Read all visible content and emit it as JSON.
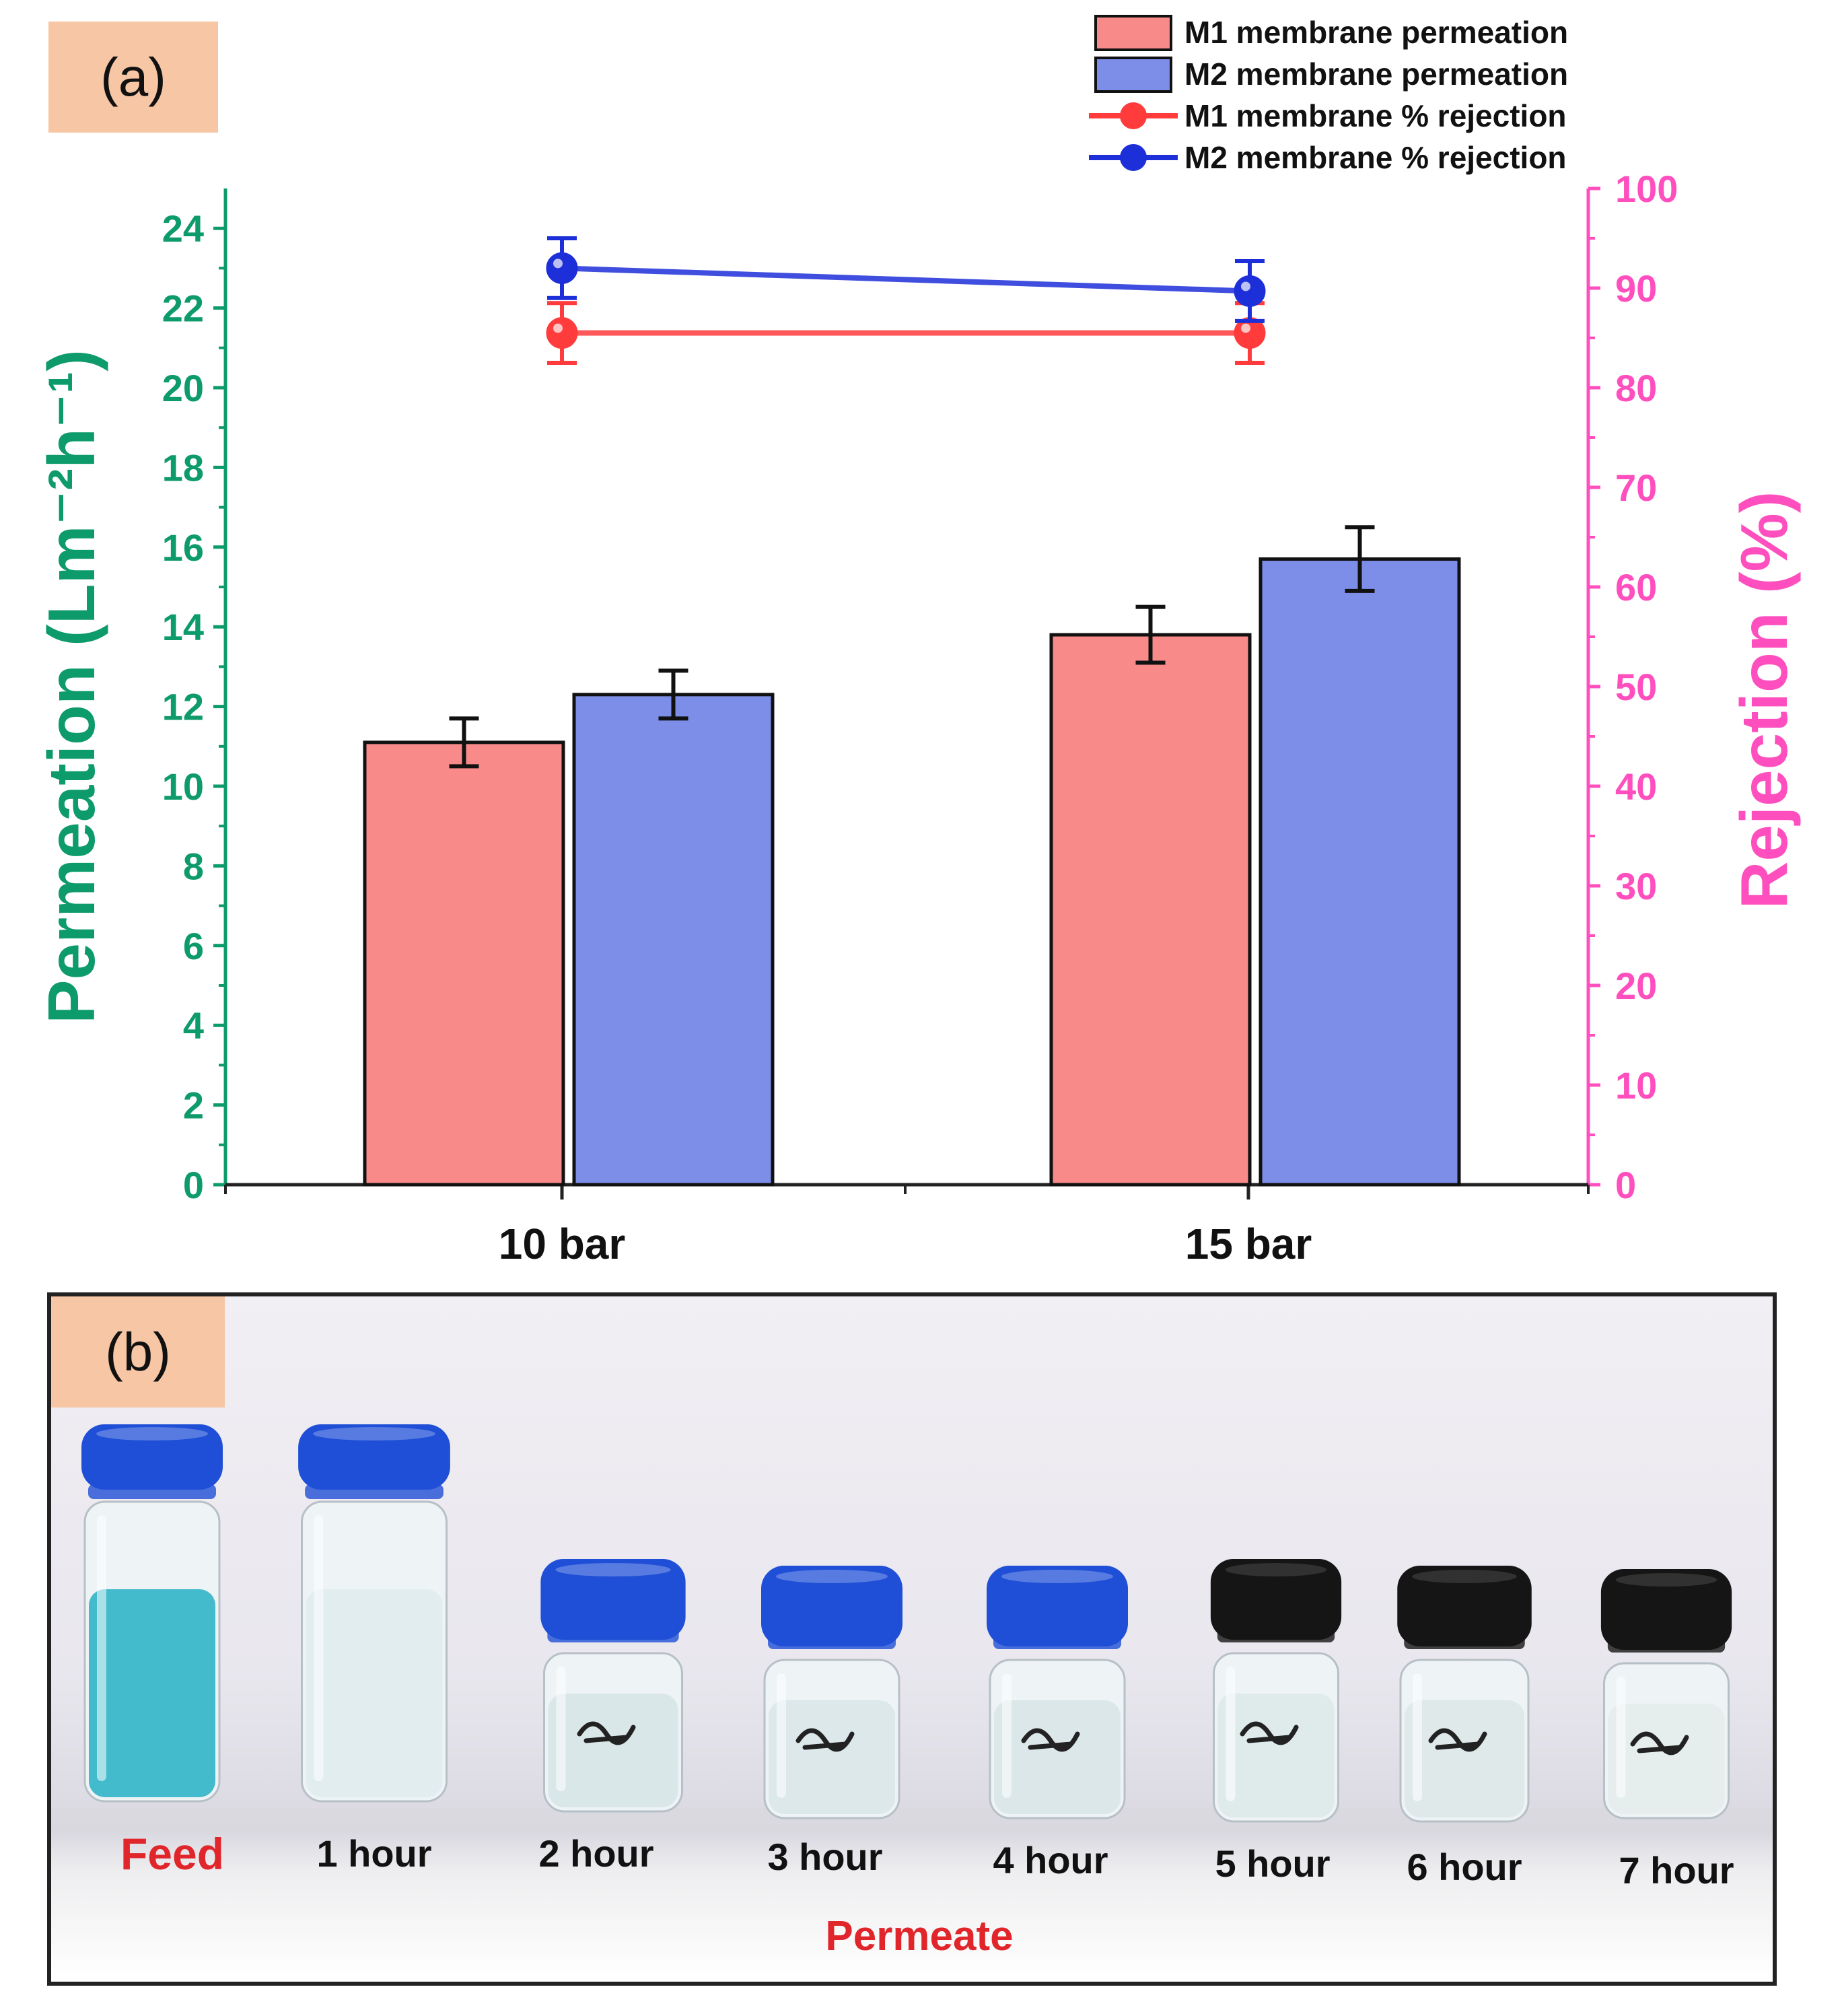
{
  "panel_a_label": "(a)",
  "panel_b_label": "(b)",
  "chart_data": {
    "type": "bar",
    "categories": [
      "10 bar",
      "15 bar"
    ],
    "left_axis": {
      "label": "Permeation (Lm⁻²h⁻¹)",
      "ylim": [
        0,
        25
      ],
      "ticks": [
        0,
        2,
        4,
        6,
        8,
        10,
        12,
        14,
        16,
        18,
        20,
        22,
        24
      ],
      "color": "#0e9b6b"
    },
    "right_axis": {
      "label": "Rejection (%)",
      "ylim": [
        0,
        100
      ],
      "ticks": [
        0,
        10,
        20,
        30,
        40,
        50,
        60,
        70,
        80,
        90,
        100
      ],
      "color": "#ff4fbf"
    },
    "series": [
      {
        "name": "M1 membrane permeation",
        "kind": "bar",
        "values": [
          11.1,
          13.8
        ],
        "errors": [
          0.6,
          0.7
        ],
        "color": "#f98a8a"
      },
      {
        "name": "M2 membrane permeation",
        "kind": "bar",
        "values": [
          12.3,
          15.7
        ],
        "errors": [
          0.6,
          0.8
        ],
        "color": "#7d8ee8"
      },
      {
        "name": "M1 membrane % rejection",
        "kind": "line",
        "axis": "right",
        "values": [
          85.5,
          85.5
        ],
        "errors": [
          3,
          3
        ],
        "color": "#ff3b3b"
      },
      {
        "name": "M2 membrane % rejection",
        "kind": "line",
        "axis": "right",
        "values": [
          92,
          89.7
        ],
        "errors": [
          3,
          3
        ],
        "color": "#1d2fd8"
      }
    ],
    "legend_position": "top-right"
  },
  "photo": {
    "vials": [
      {
        "label": "Feed",
        "cap": "blue",
        "liquid": "#3ab7c9"
      },
      {
        "label": "1 hour",
        "cap": "blue",
        "liquid": "#dfecee"
      },
      {
        "label": "2 hour",
        "cap": "blue",
        "liquid": "#d8e6e8"
      },
      {
        "label": "3 hour",
        "cap": "blue",
        "liquid": "#dae7e9"
      },
      {
        "label": "4 hour",
        "cap": "blue",
        "liquid": "#d9e6e8"
      },
      {
        "label": "5 hour",
        "cap": "black",
        "liquid": "#dde9ea"
      },
      {
        "label": "6 hour",
        "cap": "black",
        "liquid": "#dde8e9"
      },
      {
        "label": "7 hour",
        "cap": "black",
        "liquid": "#e4ecec"
      }
    ],
    "permeate_label": "Permeate",
    "colors": {
      "blue_cap": "#1f4fd6",
      "black_cap": "#151515"
    }
  }
}
